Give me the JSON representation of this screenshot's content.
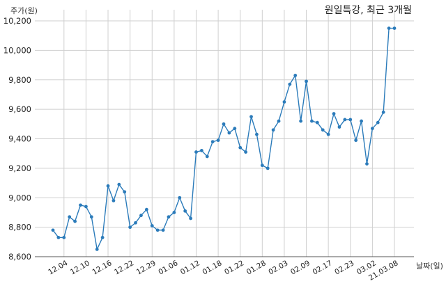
{
  "chart_data": {
    "type": "line",
    "title": "원일특강, 최근 3개월",
    "ylabel": "주가(원)",
    "xlabel": "날짜(일)",
    "ylim": [
      8600,
      10200
    ],
    "yticks": [
      "8,600",
      "8,800",
      "9,000",
      "9,200",
      "9,400",
      "9,600",
      "9,800",
      "10,000",
      "10,200"
    ],
    "yticks_values": [
      8600,
      8800,
      9000,
      9200,
      9400,
      9600,
      9800,
      10000,
      10200
    ],
    "xticks": [
      "12.04",
      "12.10",
      "12.16",
      "12.22",
      "12.29",
      "01.06",
      "01.12",
      "01.18",
      "01.22",
      "01.28",
      "02.03",
      "02.09",
      "02.17",
      "02.23",
      "03.02",
      "21.03.08"
    ],
    "xticks_index": [
      2,
      6,
      10,
      14,
      18,
      22,
      26,
      30,
      34,
      38,
      42,
      46,
      50,
      54,
      58,
      62
    ],
    "grid": true,
    "color": "#2b7bba",
    "series": [
      {
        "values": [
          8780,
          8730,
          8730,
          8870,
          8840,
          8950,
          8940,
          8870,
          8650,
          8730,
          9080,
          8980,
          9090,
          9040,
          8800,
          8830,
          8880,
          8920,
          8810,
          8780,
          8780,
          8870,
          8900,
          9000,
          8910,
          8860,
          9310,
          9320,
          9280,
          9380,
          9390,
          9500,
          9440,
          9470,
          9340,
          9310,
          9550,
          9430,
          9220,
          9200,
          9460,
          9520,
          9650,
          9770,
          9830,
          9520,
          9790,
          9520,
          9510,
          9460,
          9430,
          9570,
          9480,
          9530,
          9530,
          9390,
          9520,
          9230,
          9470,
          9510,
          9580,
          10150,
          10150
        ]
      }
    ]
  }
}
